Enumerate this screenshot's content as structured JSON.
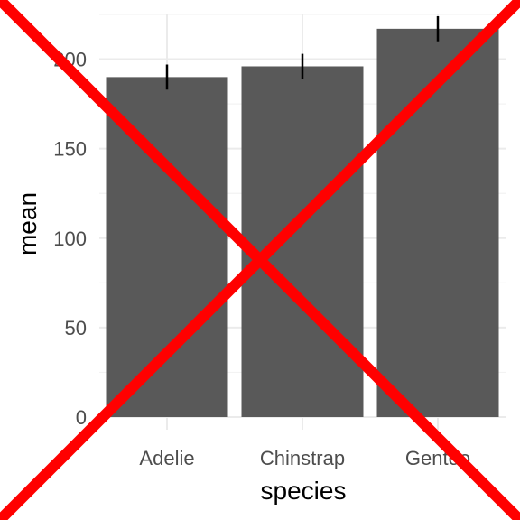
{
  "chart_data": {
    "type": "bar",
    "categories": [
      "Adelie",
      "Chinstrap",
      "Gentoo"
    ],
    "values": [
      190,
      196,
      217
    ],
    "error_bars": [
      {
        "lower": 183,
        "upper": 197
      },
      {
        "lower": 189,
        "upper": 203
      },
      {
        "lower": 210,
        "upper": 224
      }
    ],
    "title": "",
    "xlabel": "species",
    "ylabel": "mean",
    "ylim": [
      0,
      225
    ],
    "y_ticks": [
      0,
      50,
      100,
      150,
      200
    ],
    "grid": true,
    "theme": "minimal",
    "colors": {
      "bar": "#595959",
      "error_bar": "#000000",
      "grid_major": "#ebebeb",
      "grid_minor": "#f3f3f3",
      "cross_overlay": "#ff0000"
    },
    "overlay": "red-cross"
  }
}
